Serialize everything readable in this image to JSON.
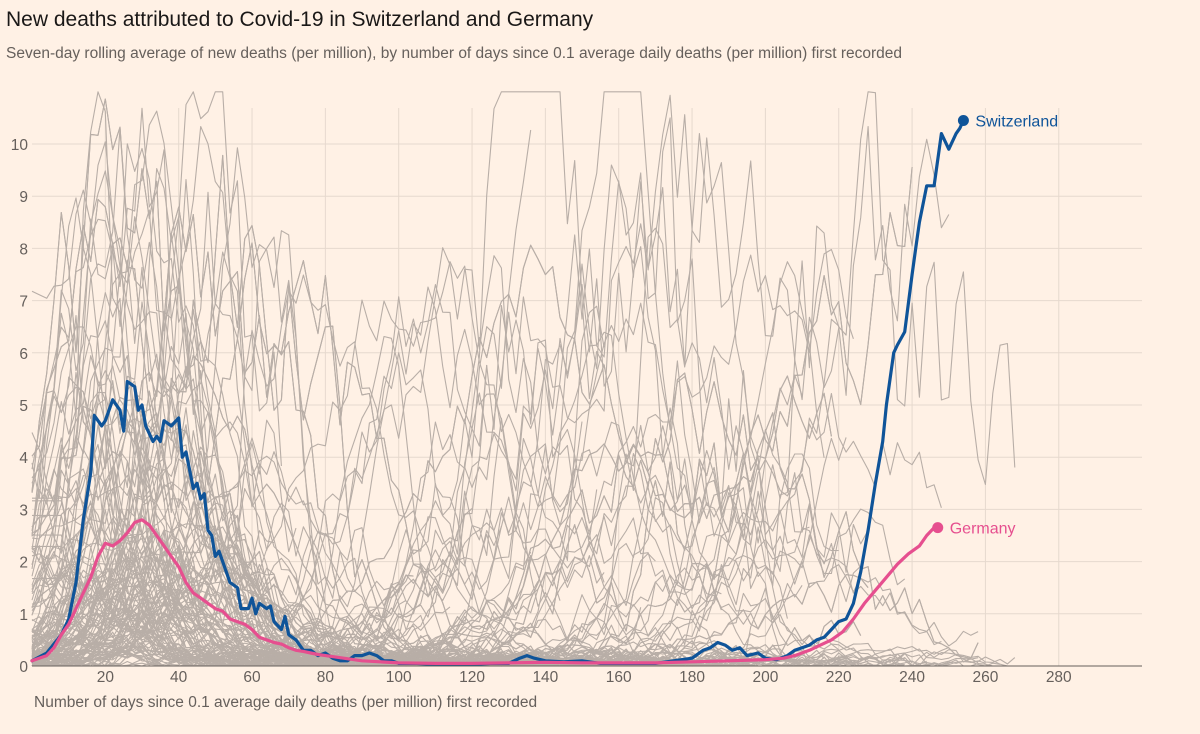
{
  "title": "New deaths attributed to Covid-19 in Switzerland and Germany",
  "subtitle": "Seven-day rolling average of new deaths (per million), by number of days since 0.1 average daily deaths (per million) first recorded",
  "colors": {
    "background": "#FFF1E5",
    "grid": "#E6D9CE",
    "other_countries": "#B8AEA7",
    "switzerland": "#0F5499",
    "germany": "#E64F8F",
    "axis_text": "#66605C"
  },
  "chart_data": {
    "type": "line",
    "title": "New deaths attributed to Covid-19 in Switzerland and Germany",
    "xlabel": "Number of days since 0.1 average daily deaths (per million) first recorded",
    "ylabel": "",
    "xlim": [
      0,
      300
    ],
    "ylim": [
      0,
      10.5
    ],
    "x_ticks": [
      20,
      40,
      60,
      80,
      100,
      120,
      140,
      160,
      180,
      200,
      220,
      240,
      260,
      280
    ],
    "y_ticks": [
      0,
      1,
      2,
      3,
      4,
      5,
      6,
      7,
      8,
      9,
      10
    ],
    "grid": true,
    "highlighted_series": [
      {
        "name": "Switzerland",
        "color": "#0F5499",
        "points": [
          [
            0,
            0.1
          ],
          [
            4,
            0.25
          ],
          [
            8,
            0.6
          ],
          [
            10,
            0.9
          ],
          [
            12,
            1.6
          ],
          [
            14,
            2.8
          ],
          [
            16,
            3.7
          ],
          [
            17,
            4.8
          ],
          [
            19,
            4.6
          ],
          [
            20,
            4.7
          ],
          [
            22,
            5.1
          ],
          [
            24,
            4.9
          ],
          [
            25,
            4.5
          ],
          [
            26,
            5.45
          ],
          [
            28,
            5.35
          ],
          [
            29,
            4.9
          ],
          [
            30,
            5.0
          ],
          [
            31,
            4.6
          ],
          [
            33,
            4.3
          ],
          [
            34,
            4.4
          ],
          [
            35,
            4.3
          ],
          [
            36,
            4.7
          ],
          [
            38,
            4.6
          ],
          [
            40,
            4.75
          ],
          [
            41,
            4.0
          ],
          [
            42,
            4.1
          ],
          [
            44,
            3.4
          ],
          [
            45,
            3.5
          ],
          [
            46,
            3.2
          ],
          [
            47,
            3.3
          ],
          [
            48,
            2.6
          ],
          [
            49,
            2.5
          ],
          [
            50,
            2.1
          ],
          [
            51,
            2.2
          ],
          [
            52,
            2.0
          ],
          [
            54,
            1.6
          ],
          [
            56,
            1.5
          ],
          [
            57,
            1.1
          ],
          [
            59,
            1.1
          ],
          [
            60,
            1.3
          ],
          [
            61,
            1.0
          ],
          [
            62,
            1.2
          ],
          [
            64,
            1.1
          ],
          [
            65,
            1.15
          ],
          [
            66,
            0.85
          ],
          [
            68,
            0.7
          ],
          [
            69,
            0.95
          ],
          [
            70,
            0.6
          ],
          [
            72,
            0.5
          ],
          [
            74,
            0.3
          ],
          [
            76,
            0.3
          ],
          [
            78,
            0.2
          ],
          [
            80,
            0.25
          ],
          [
            82,
            0.15
          ],
          [
            84,
            0.1
          ],
          [
            86,
            0.1
          ],
          [
            88,
            0.2
          ],
          [
            90,
            0.2
          ],
          [
            92,
            0.25
          ],
          [
            94,
            0.2
          ],
          [
            96,
            0.1
          ],
          [
            98,
            0.1
          ],
          [
            100,
            0.05
          ],
          [
            105,
            0.05
          ],
          [
            110,
            0.03
          ],
          [
            115,
            0.03
          ],
          [
            120,
            0.03
          ],
          [
            125,
            0.05
          ],
          [
            130,
            0.05
          ],
          [
            133,
            0.15
          ],
          [
            135,
            0.2
          ],
          [
            137,
            0.15
          ],
          [
            140,
            0.1
          ],
          [
            145,
            0.08
          ],
          [
            150,
            0.1
          ],
          [
            155,
            0.05
          ],
          [
            160,
            0.05
          ],
          [
            165,
            0.05
          ],
          [
            170,
            0.05
          ],
          [
            175,
            0.1
          ],
          [
            180,
            0.15
          ],
          [
            183,
            0.3
          ],
          [
            185,
            0.35
          ],
          [
            187,
            0.45
          ],
          [
            189,
            0.4
          ],
          [
            191,
            0.3
          ],
          [
            193,
            0.35
          ],
          [
            195,
            0.2
          ],
          [
            198,
            0.25
          ],
          [
            200,
            0.15
          ],
          [
            203,
            0.12
          ],
          [
            206,
            0.2
          ],
          [
            208,
            0.3
          ],
          [
            210,
            0.35
          ],
          [
            212,
            0.4
          ],
          [
            214,
            0.5
          ],
          [
            216,
            0.55
          ],
          [
            218,
            0.7
          ],
          [
            220,
            0.85
          ],
          [
            222,
            0.9
          ],
          [
            224,
            1.2
          ],
          [
            226,
            1.8
          ],
          [
            228,
            2.6
          ],
          [
            230,
            3.5
          ],
          [
            232,
            4.3
          ],
          [
            233,
            5.0
          ],
          [
            235,
            6.0
          ],
          [
            236,
            6.15
          ],
          [
            238,
            6.4
          ],
          [
            240,
            7.5
          ],
          [
            241,
            8.0
          ],
          [
            242,
            8.5
          ],
          [
            244,
            9.2
          ],
          [
            246,
            9.2
          ],
          [
            248,
            10.2
          ],
          [
            250,
            9.9
          ],
          [
            252,
            10.2
          ],
          [
            253,
            10.3
          ],
          [
            254,
            10.45
          ]
        ]
      },
      {
        "name": "Germany",
        "color": "#E64F8F",
        "points": [
          [
            0,
            0.1
          ],
          [
            4,
            0.2
          ],
          [
            6,
            0.35
          ],
          [
            8,
            0.6
          ],
          [
            10,
            0.8
          ],
          [
            12,
            1.1
          ],
          [
            14,
            1.4
          ],
          [
            16,
            1.7
          ],
          [
            18,
            2.1
          ],
          [
            20,
            2.35
          ],
          [
            22,
            2.3
          ],
          [
            24,
            2.4
          ],
          [
            26,
            2.55
          ],
          [
            28,
            2.75
          ],
          [
            30,
            2.8
          ],
          [
            32,
            2.7
          ],
          [
            34,
            2.5
          ],
          [
            36,
            2.3
          ],
          [
            38,
            2.1
          ],
          [
            40,
            1.9
          ],
          [
            42,
            1.6
          ],
          [
            44,
            1.4
          ],
          [
            46,
            1.3
          ],
          [
            48,
            1.2
          ],
          [
            50,
            1.1
          ],
          [
            52,
            1.05
          ],
          [
            54,
            0.9
          ],
          [
            56,
            0.85
          ],
          [
            58,
            0.8
          ],
          [
            60,
            0.7
          ],
          [
            62,
            0.55
          ],
          [
            64,
            0.5
          ],
          [
            66,
            0.45
          ],
          [
            68,
            0.42
          ],
          [
            70,
            0.35
          ],
          [
            72,
            0.3
          ],
          [
            74,
            0.28
          ],
          [
            76,
            0.25
          ],
          [
            78,
            0.22
          ],
          [
            80,
            0.2
          ],
          [
            85,
            0.15
          ],
          [
            90,
            0.1
          ],
          [
            95,
            0.08
          ],
          [
            100,
            0.06
          ],
          [
            110,
            0.05
          ],
          [
            120,
            0.05
          ],
          [
            130,
            0.06
          ],
          [
            140,
            0.07
          ],
          [
            150,
            0.06
          ],
          [
            160,
            0.06
          ],
          [
            170,
            0.06
          ],
          [
            180,
            0.08
          ],
          [
            190,
            0.1
          ],
          [
            200,
            0.12
          ],
          [
            205,
            0.15
          ],
          [
            208,
            0.2
          ],
          [
            212,
            0.3
          ],
          [
            215,
            0.4
          ],
          [
            218,
            0.5
          ],
          [
            221,
            0.65
          ],
          [
            224,
            0.9
          ],
          [
            227,
            1.2
          ],
          [
            230,
            1.45
          ],
          [
            233,
            1.7
          ],
          [
            236,
            1.95
          ],
          [
            239,
            2.15
          ],
          [
            242,
            2.3
          ],
          [
            244,
            2.5
          ],
          [
            246,
            2.65
          ],
          [
            247,
            2.65
          ]
        ]
      }
    ],
    "annotations": [
      "Switzerland",
      "Germany"
    ]
  }
}
